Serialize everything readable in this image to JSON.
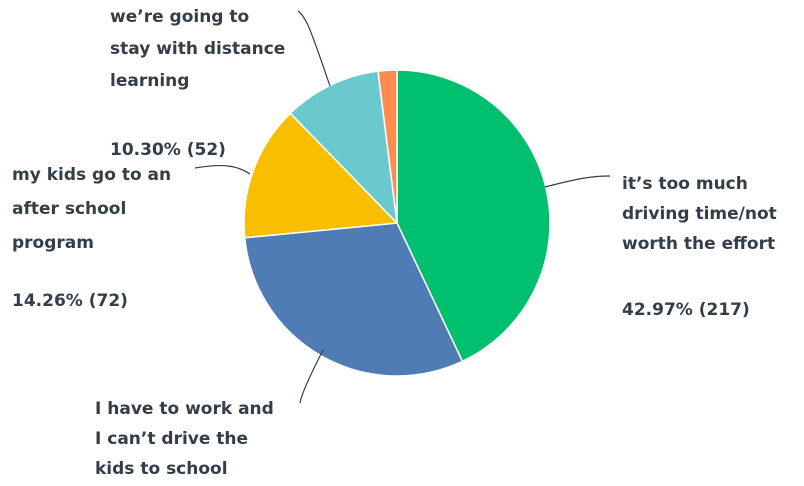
{
  "chart_data": {
    "type": "pie",
    "title": "",
    "start_angle_deg": 0,
    "direction": "clockwise",
    "slices": [
      {
        "label": "it’s too much driving time/not worth the effort",
        "label_lines": [
          "it’s too much",
          "driving time/not",
          "worth the effort"
        ],
        "percent_label": "42.97% (217)",
        "percent": 42.97,
        "count": 217,
        "color": "#00bf6f"
      },
      {
        "label": "I have to work and I can’t drive the kids to school",
        "label_lines": [
          "I have to work and",
          "I can’t drive the",
          "kids to school"
        ],
        "percent_label": "",
        "percent": 30.49,
        "count": 154,
        "color": "#507cb6"
      },
      {
        "label": "my kids go to an after school program",
        "label_lines": [
          "my kids go to an",
          "after school",
          "program"
        ],
        "percent_label": "14.26% (72)",
        "percent": 14.26,
        "count": 72,
        "color": "#f9be00"
      },
      {
        "label": "we’re going to stay with distance learning",
        "label_lines": [
          "we’re going to",
          "stay with distance",
          "learning"
        ],
        "percent_label": "10.30% (52)",
        "percent": 10.3,
        "count": 52,
        "color": "#6bc8cd"
      },
      {
        "label": "",
        "label_lines": [],
        "percent_label": "",
        "percent": 1.98,
        "count": 10,
        "color": "#ff8b4f"
      }
    ]
  }
}
